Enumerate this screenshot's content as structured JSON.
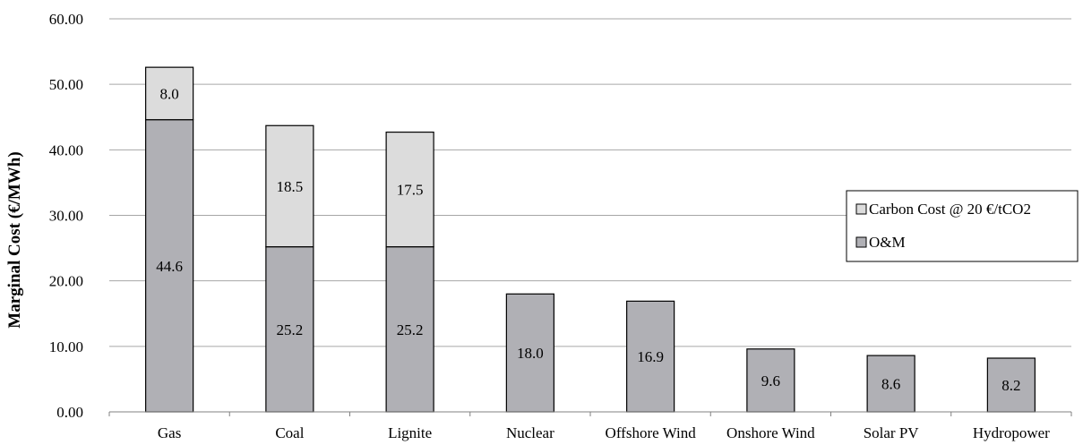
{
  "chart_data": {
    "type": "bar",
    "stacked": true,
    "title": "",
    "xlabel": "",
    "ylabel": "Marginal Cost (€/MWh)",
    "ylim": [
      0,
      60
    ],
    "yticks": [
      "0.00",
      "10.00",
      "20.00",
      "30.00",
      "40.00",
      "50.00",
      "60.00"
    ],
    "grid": true,
    "legend_position": "right",
    "categories": [
      "Gas",
      "Coal",
      "Lignite",
      "Nuclear",
      "Offshore Wind",
      "Onshore Wind",
      "Solar PV",
      "Hydropower"
    ],
    "series": [
      {
        "name": "O&M",
        "color": "#b0b0b5",
        "values": [
          44.6,
          25.2,
          25.2,
          18.0,
          16.9,
          9.6,
          8.6,
          8.2
        ],
        "labels": [
          "44.6",
          "25.2",
          "25.2",
          "18.0",
          "16.9",
          "9.6",
          "8.6",
          "8.2"
        ]
      },
      {
        "name": "Carbon Cost @ 20 €/tCO2",
        "color": "#dcdcdc",
        "values": [
          8.0,
          18.5,
          17.5,
          0,
          0,
          0,
          0,
          0
        ],
        "labels": [
          "8.0",
          "18.5",
          "17.5",
          "",
          "",
          "",
          "",
          ""
        ]
      }
    ],
    "legend": [
      "Carbon Cost @ 20 €/tCO2",
      "O&M"
    ]
  }
}
